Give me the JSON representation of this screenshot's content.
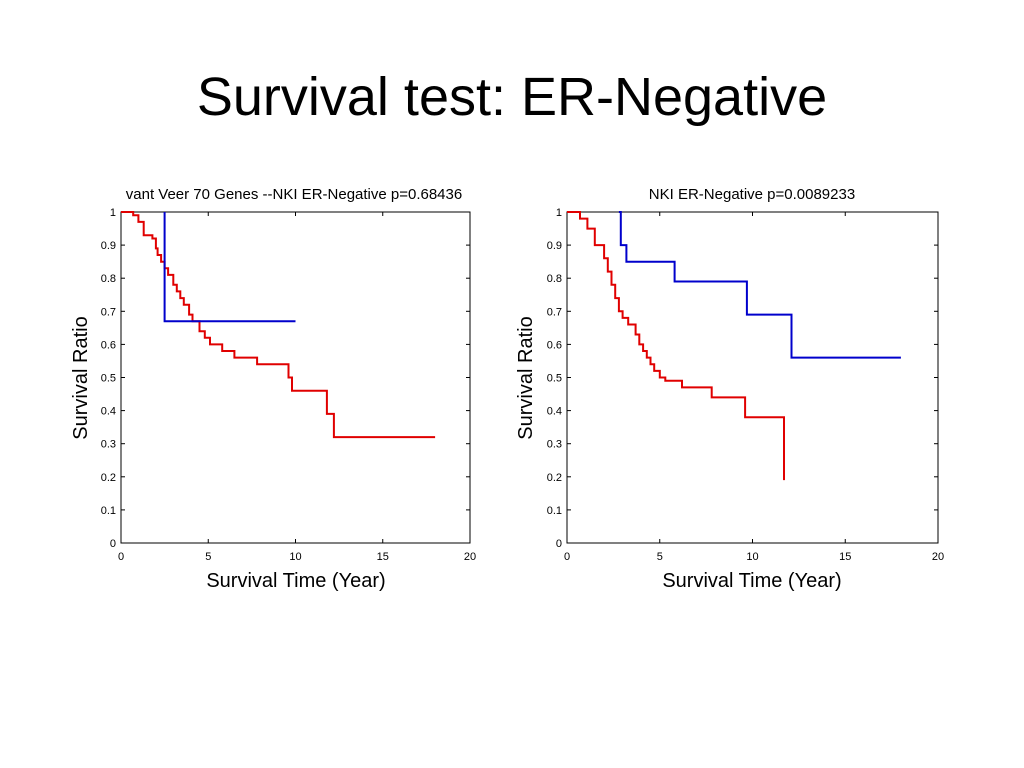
{
  "slide": {
    "title": "Survival test: ER-Negative"
  },
  "chart_data": [
    {
      "type": "line",
      "title": "vant Veer 70 Genes --NKI ER-Negative p=0.68436",
      "xlabel": "Survival Time (Year)",
      "ylabel": "Survival Ratio",
      "xlim": [
        0,
        20
      ],
      "ylim": [
        0,
        1
      ],
      "x_ticks": [
        0,
        5,
        10,
        15,
        20
      ],
      "y_ticks": [
        0,
        0.1,
        0.2,
        0.3,
        0.4,
        0.5,
        0.6,
        0.7,
        0.8,
        0.9,
        1
      ],
      "grid": false,
      "series": [
        {
          "color": "#e00000",
          "step": true,
          "x": [
            0,
            0.7,
            1.0,
            1.3,
            1.8,
            2.0,
            2.1,
            2.3,
            2.5,
            2.7,
            3.0,
            3.2,
            3.4,
            3.6,
            3.9,
            4.1,
            4.5,
            4.8,
            5.1,
            5.8,
            6.5,
            7.8,
            9.6,
            9.8,
            11.8,
            12.2,
            18.0
          ],
          "y": [
            1.0,
            0.99,
            0.97,
            0.93,
            0.92,
            0.89,
            0.87,
            0.85,
            0.83,
            0.81,
            0.78,
            0.76,
            0.74,
            0.72,
            0.69,
            0.67,
            0.64,
            0.62,
            0.6,
            0.58,
            0.56,
            0.54,
            0.5,
            0.46,
            0.39,
            0.32,
            0.32
          ]
        },
        {
          "color": "#0000cc",
          "step": true,
          "x": [
            2.5,
            2.5,
            10.0
          ],
          "y": [
            1.0,
            0.67,
            0.67
          ]
        }
      ]
    },
    {
      "type": "line",
      "title": "NKI ER-Negative p=0.0089233",
      "xlabel": "Survival Time (Year)",
      "ylabel": "Survival Ratio",
      "xlim": [
        0,
        20
      ],
      "ylim": [
        0,
        1
      ],
      "x_ticks": [
        0,
        5,
        10,
        15,
        20
      ],
      "y_ticks": [
        0,
        0.1,
        0.2,
        0.3,
        0.4,
        0.5,
        0.6,
        0.7,
        0.8,
        0.9,
        1
      ],
      "grid": false,
      "series": [
        {
          "color": "#e00000",
          "step": true,
          "x": [
            0,
            0.7,
            1.1,
            1.5,
            2.0,
            2.2,
            2.4,
            2.6,
            2.8,
            3.0,
            3.3,
            3.7,
            3.9,
            4.1,
            4.3,
            4.5,
            4.7,
            5.0,
            5.3,
            6.2,
            6.5,
            7.8,
            9.6,
            11.7,
            11.7
          ],
          "y": [
            1.0,
            0.98,
            0.95,
            0.9,
            0.86,
            0.82,
            0.78,
            0.74,
            0.7,
            0.68,
            0.66,
            0.63,
            0.6,
            0.58,
            0.56,
            0.54,
            0.52,
            0.5,
            0.49,
            0.47,
            0.47,
            0.44,
            0.38,
            0.38,
            0.19
          ]
        },
        {
          "color": "#0000cc",
          "step": true,
          "x": [
            2.8,
            2.9,
            3.2,
            5.8,
            9.7,
            12.1,
            18.0
          ],
          "y": [
            1.0,
            0.9,
            0.85,
            0.79,
            0.69,
            0.56,
            0.56
          ]
        }
      ]
    }
  ]
}
